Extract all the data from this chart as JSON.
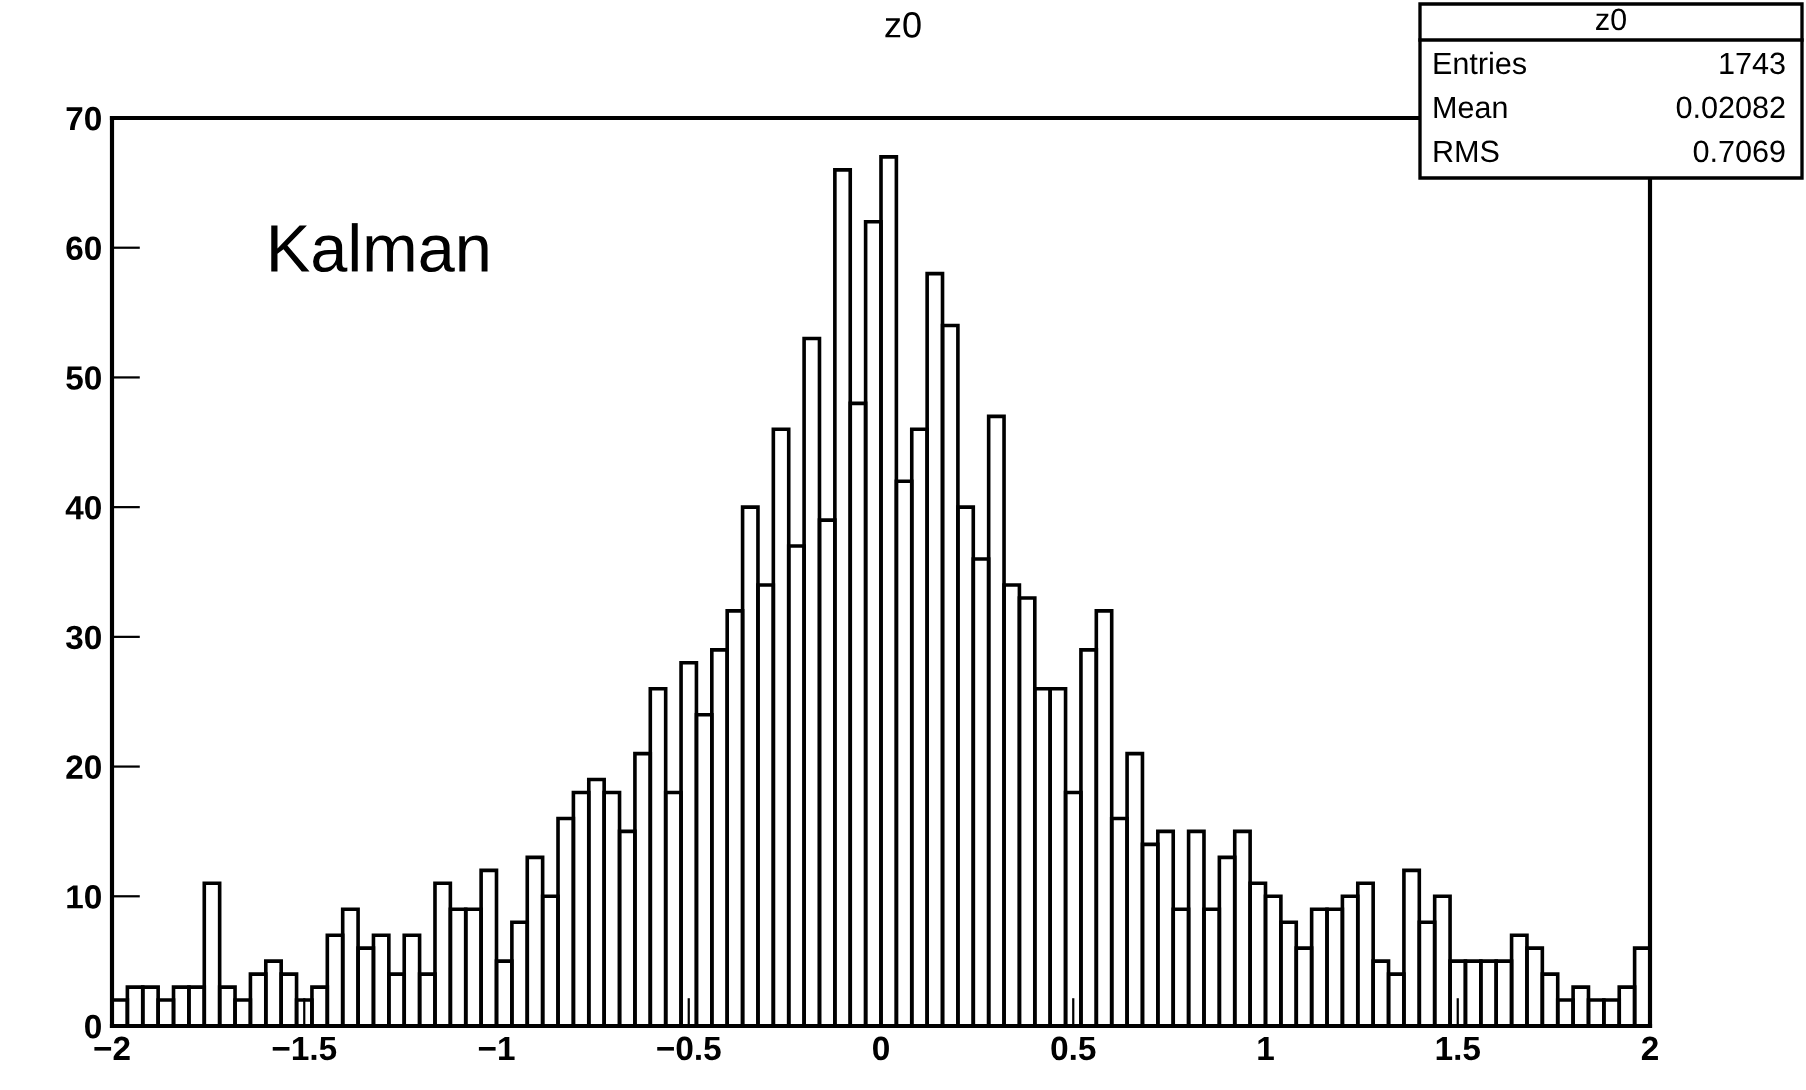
{
  "chart_data": {
    "type": "histogram",
    "title": "z0",
    "bins": [
      -2,
      -1.96,
      -1.92,
      -1.88,
      -1.84,
      -1.8,
      -1.76,
      -1.72,
      -1.68,
      -1.64,
      -1.6,
      -1.56,
      -1.52,
      -1.48,
      -1.44,
      -1.4,
      -1.36,
      -1.32,
      -1.28,
      -1.24,
      -1.2,
      -1.16,
      -1.12,
      -1.08,
      -1.04,
      -1,
      -0.96,
      -0.92,
      -0.88,
      -0.84,
      -0.8,
      -0.76,
      -0.72,
      -0.68,
      -0.64,
      -0.6,
      -0.56,
      -0.52,
      -0.48,
      -0.44,
      -0.4,
      -0.36,
      -0.32,
      -0.28,
      -0.24,
      -0.2,
      -0.16,
      -0.12,
      -0.08,
      -0.04,
      0,
      0.04,
      0.08,
      0.12,
      0.16,
      0.2,
      0.24,
      0.28,
      0.32,
      0.36,
      0.4,
      0.44,
      0.48,
      0.52,
      0.56,
      0.6,
      0.64,
      0.68,
      0.72,
      0.76,
      0.8,
      0.84,
      0.88,
      0.92,
      0.96,
      1,
      1.04,
      1.08,
      1.12,
      1.16,
      1.2,
      1.24,
      1.28,
      1.32,
      1.36,
      1.4,
      1.44,
      1.48,
      1.52,
      1.56,
      1.6,
      1.64,
      1.68,
      1.72,
      1.76,
      1.8,
      1.84,
      1.88,
      1.92,
      1.96,
      2
    ],
    "values": [
      2,
      3,
      3,
      2,
      3,
      3,
      11,
      3,
      2,
      4,
      5,
      4,
      2,
      3,
      7,
      9,
      6,
      7,
      4,
      7,
      4,
      11,
      9,
      9,
      12,
      5,
      8,
      13,
      10,
      16,
      18,
      19,
      18,
      15,
      21,
      26,
      18,
      28,
      24,
      29,
      32,
      40,
      34,
      46,
      37,
      53,
      39,
      66,
      48,
      62,
      67,
      42,
      46,
      58,
      54,
      40,
      36,
      47,
      34,
      33,
      26,
      26,
      18,
      29,
      32,
      16,
      21,
      14,
      15,
      9,
      15,
      9,
      13,
      15,
      11,
      10,
      8,
      6,
      9,
      9,
      10,
      11,
      5,
      4,
      12,
      8,
      10,
      5,
      5,
      5,
      5,
      7,
      6,
      4,
      2,
      3,
      2,
      2,
      3,
      6
    ],
    "color": "#000000",
    "xlim": [
      -2,
      2
    ],
    "ylim": [
      0,
      70
    ],
    "xticks": [
      {
        "value": -2,
        "label": "−2"
      },
      {
        "value": -1.5,
        "label": "−1.5"
      },
      {
        "value": -1,
        "label": "−1"
      },
      {
        "value": -0.5,
        "label": "−0.5"
      },
      0,
      0.5,
      1,
      1.5,
      2
    ],
    "yticks": [
      0,
      10,
      20,
      30,
      40,
      50,
      60,
      70
    ],
    "annotations": [
      "Kalman",
      "z0",
      "Entries 1743",
      "Mean 0.02082",
      "RMS 0.7069"
    ]
  }
}
